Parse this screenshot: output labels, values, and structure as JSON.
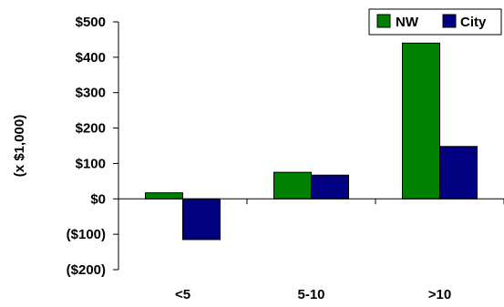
{
  "chart_data": {
    "type": "bar",
    "title": "",
    "xlabel": "",
    "ylabel": "(x $1,000)",
    "categories": [
      "<5",
      "5-10",
      ">10"
    ],
    "series": [
      {
        "name": "NW",
        "values": [
          17,
          75,
          440
        ],
        "color": "#008000"
      },
      {
        "name": "City",
        "values": [
          -115,
          67,
          148
        ],
        "color": "#000080"
      }
    ],
    "ylim": [
      -200,
      500
    ],
    "yticks": [
      500,
      400,
      300,
      200,
      100,
      0,
      -100,
      -200
    ],
    "ytick_labels": [
      "$500",
      "$400",
      "$300",
      "$200",
      "$100",
      "$0",
      "($100)",
      "($200)"
    ],
    "grid": false,
    "legend_position": "top-right"
  }
}
